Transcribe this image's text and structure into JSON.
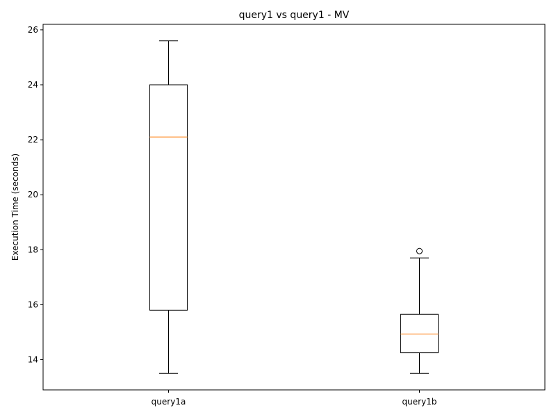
{
  "chart_data": {
    "type": "box",
    "title": "query1 vs query1 - MV",
    "xlabel": "",
    "ylabel": "Execution Time (seconds)",
    "ylim": [
      12.9,
      26.2
    ],
    "yticks": [
      14,
      16,
      18,
      20,
      22,
      24,
      26
    ],
    "categories": [
      "query1a",
      "query1b"
    ],
    "boxes": [
      {
        "label": "query1a",
        "whisker_low": 13.5,
        "q1": 15.8,
        "median": 22.1,
        "q3": 24.0,
        "whisker_high": 25.6,
        "outliers": []
      },
      {
        "label": "query1b",
        "whisker_low": 13.5,
        "q1": 14.25,
        "median": 14.93,
        "q3": 15.65,
        "whisker_high": 17.7,
        "outliers": [
          17.95
        ]
      }
    ],
    "grid": false,
    "colors": {
      "box": "#000000",
      "median": "#ff7f0e",
      "background": "#ffffff"
    }
  }
}
